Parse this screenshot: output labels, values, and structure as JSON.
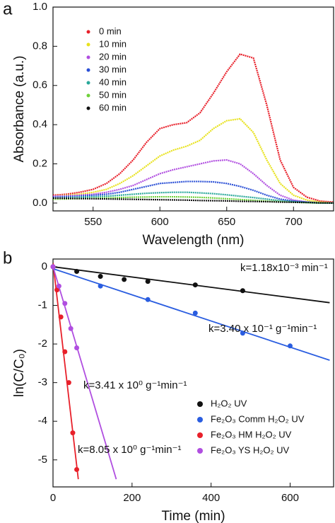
{
  "chart_data": [
    {
      "type": "line",
      "panel_label": "a",
      "xlabel": "Wavelength (nm)",
      "ylabel": "Absorbance (a.u.)",
      "x": [
        520,
        530,
        540,
        550,
        560,
        570,
        580,
        590,
        600,
        610,
        620,
        630,
        640,
        650,
        660,
        670,
        680,
        690,
        700,
        710,
        720,
        730
      ],
      "series": [
        {
          "name": "0 min",
          "color": "#e8202a",
          "values": [
            0.04,
            0.045,
            0.055,
            0.07,
            0.1,
            0.15,
            0.22,
            0.31,
            0.38,
            0.4,
            0.41,
            0.46,
            0.56,
            0.67,
            0.76,
            0.74,
            0.5,
            0.22,
            0.08,
            0.03,
            0.01,
            0.005
          ]
        },
        {
          "name": "10 min",
          "color": "#e8e21c",
          "values": [
            0.035,
            0.04,
            0.045,
            0.055,
            0.07,
            0.1,
            0.14,
            0.19,
            0.24,
            0.27,
            0.29,
            0.32,
            0.38,
            0.42,
            0.43,
            0.36,
            0.22,
            0.1,
            0.04,
            0.015,
            0.005,
            0
          ]
        },
        {
          "name": "20 min",
          "color": "#b04ee0",
          "values": [
            0.035,
            0.037,
            0.04,
            0.045,
            0.055,
            0.07,
            0.09,
            0.12,
            0.15,
            0.17,
            0.185,
            0.2,
            0.215,
            0.22,
            0.2,
            0.15,
            0.09,
            0.04,
            0.015,
            0.005,
            0,
            0
          ]
        },
        {
          "name": "30 min",
          "color": "#2a4fd6",
          "values": [
            0.03,
            0.032,
            0.035,
            0.04,
            0.045,
            0.055,
            0.07,
            0.085,
            0.1,
            0.105,
            0.11,
            0.11,
            0.108,
            0.1,
            0.085,
            0.065,
            0.04,
            0.02,
            0.01,
            0.005,
            0,
            0
          ]
        },
        {
          "name": "40 min",
          "color": "#2aa89a",
          "values": [
            0.025,
            0.027,
            0.03,
            0.032,
            0.035,
            0.04,
            0.045,
            0.05,
            0.053,
            0.055,
            0.055,
            0.052,
            0.048,
            0.042,
            0.035,
            0.028,
            0.02,
            0.012,
            0.007,
            0.003,
            0,
            0
          ]
        },
        {
          "name": "50 min",
          "color": "#6fd13a",
          "values": [
            0.02,
            0.021,
            0.022,
            0.024,
            0.026,
            0.028,
            0.03,
            0.031,
            0.032,
            0.032,
            0.031,
            0.029,
            0.026,
            0.022,
            0.018,
            0.014,
            0.01,
            0.007,
            0.004,
            0.002,
            0,
            0
          ]
        },
        {
          "name": "60 min",
          "color": "#111111",
          "values": [
            0.025,
            0.024,
            0.023,
            0.022,
            0.021,
            0.02,
            0.019,
            0.018,
            0.017,
            0.016,
            0.015,
            0.013,
            0.012,
            0.011,
            0.009,
            0.008,
            0.007,
            0.005,
            0.004,
            0.003,
            0.001,
            0
          ]
        }
      ],
      "xlim": [
        520,
        730
      ],
      "ylim": [
        -0.04,
        1.0
      ],
      "xticks": [
        550,
        600,
        650,
        700
      ],
      "yticks": [
        {
          "value": 0,
          "label": "0.0"
        },
        0.2,
        0.4,
        0.6,
        0.8,
        {
          "value": 1,
          "label": "1.0"
        }
      ]
    },
    {
      "type": "scatter",
      "panel_label": "b",
      "xlabel": "Time (min)",
      "ylabel": "ln(C/C₀)",
      "series": [
        {
          "name": "H₂O₂ UV",
          "color": "#111111",
          "x": [
            0,
            60,
            120,
            180,
            240,
            360,
            480
          ],
          "values": [
            0,
            -0.12,
            -0.25,
            -0.33,
            -0.38,
            -0.47,
            -0.62
          ],
          "fit_x": [
            0,
            700
          ],
          "fit_values": [
            0,
            -0.93
          ]
        },
        {
          "name": "Fe₂O₃ Comm H₂O₂ UV",
          "color": "#2a5de0",
          "x": [
            0,
            120,
            240,
            360,
            480,
            600
          ],
          "values": [
            0,
            -0.5,
            -0.85,
            -1.2,
            -1.72,
            -2.05
          ],
          "fit_x": [
            0,
            700
          ],
          "fit_values": [
            -0.05,
            -2.42
          ]
        },
        {
          "name": "Fe₂O₃ HM  H₂O₂ UV",
          "color": "#e8202a",
          "x": [
            0,
            10,
            20,
            30,
            40,
            50,
            60
          ],
          "values": [
            0,
            -0.6,
            -1.3,
            -2.2,
            -3.0,
            -4.3,
            -5.25
          ],
          "fit_x": [
            0,
            64
          ],
          "fit_values": [
            0.1,
            -5.5
          ]
        },
        {
          "name": "Fe₂O₃ YS H₂O₂ UV",
          "color": "#b04ee0",
          "x": [
            0,
            15,
            30,
            45,
            60
          ],
          "values": [
            0,
            -0.5,
            -0.95,
            -1.6,
            -2.1
          ],
          "fit_x": [
            0,
            160
          ],
          "fit_values": [
            0,
            -5.5
          ]
        }
      ],
      "annotations": [
        {
          "text": "k=1.18x10⁻³ min⁻¹",
          "color": "#111111"
        },
        {
          "text": "k=3.40 x 10⁻¹ g⁻¹min⁻¹",
          "color": "#2a5de0"
        },
        {
          "text": "k=3.41 x 10⁰ g⁻¹min⁻¹",
          "color": "#b04ee0"
        },
        {
          "text": "k=8.05 x 10⁰ g⁻¹min⁻¹",
          "color": "#e8202a"
        }
      ],
      "xlim": [
        0,
        710
      ],
      "ylim": [
        -5.7,
        0.2
      ],
      "xticks": [
        0,
        200,
        400,
        600
      ],
      "yticks": [
        0,
        -1,
        -2,
        -3,
        -4,
        -5
      ]
    }
  ]
}
